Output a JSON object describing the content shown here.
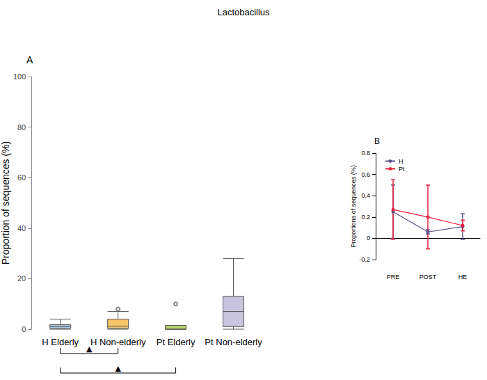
{
  "chart_data": [
    {
      "panel": "A",
      "title": "Lactobacillus",
      "type": "boxplot",
      "y_label": "Proportion of sequences (%)",
      "categories": [
        "H Elderly",
        "H Non-elderly",
        "Pt Elderly",
        "Pt Non-elderly"
      ],
      "boxes": [
        [
          0,
          0.3,
          1,
          1.8,
          4
        ],
        [
          0,
          0.3,
          1.2,
          4,
          7
        ],
        [
          0,
          0,
          0,
          1.5,
          1.5
        ],
        [
          0,
          1,
          7,
          13,
          28
        ]
      ],
      "outliers": [
        [],
        [
          8
        ],
        [
          10
        ],
        []
      ],
      "colors": [
        "#a9c9e3",
        "#f6c56a",
        "#b9d66e",
        "#c9c5de"
      ],
      "ylim": [
        0,
        100
      ],
      "yticks": [
        0,
        20,
        40,
        60,
        80,
        100
      ],
      "annotations": [
        {
          "from": "H Elderly",
          "to": "H Non-elderly",
          "text": "▲"
        },
        {
          "from": "H Elderly",
          "to": "Pt Elderly",
          "text": "▲"
        }
      ]
    },
    {
      "panel": "B",
      "type": "line",
      "y_label": "Proportions of sequences (%)",
      "categories": [
        "PRE",
        "POST",
        "HE"
      ],
      "series": [
        {
          "name": "H",
          "color": "#5b4e8c",
          "values": [
            0.25,
            0.06,
            0.11
          ],
          "errors": [
            0.25,
            0.02,
            0.12
          ]
        },
        {
          "name": "Pt",
          "color": "#e8203c",
          "values": [
            0.27,
            0.2,
            0.12
          ],
          "errors": [
            0.28,
            0.3,
            0.05
          ]
        }
      ],
      "ylim": [
        -0.2,
        0.8
      ],
      "yticks": [
        -0.2,
        0,
        0.2,
        0.4,
        0.6,
        0.8
      ],
      "legend": "upper left",
      "marker": "circle"
    }
  ]
}
